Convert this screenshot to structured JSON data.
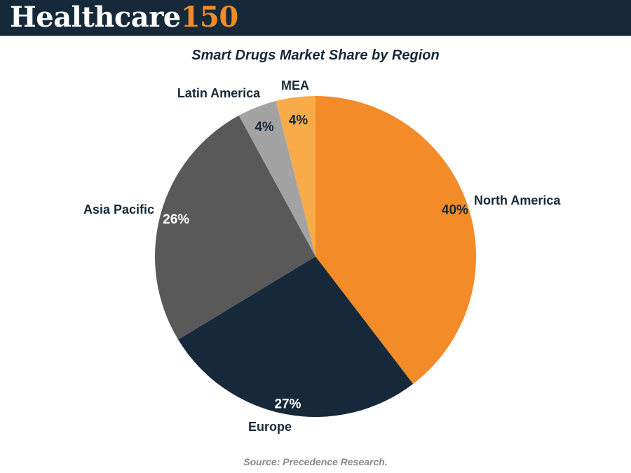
{
  "brand": {
    "name": "Healthcare",
    "number": "150"
  },
  "chart_data": {
    "type": "pie",
    "title": "Smart Drugs Market Share by Region",
    "categories": [
      "North America",
      "Europe",
      "Asia Pacific",
      "Latin America",
      "MEA"
    ],
    "values": [
      40,
      27,
      26,
      4,
      4
    ],
    "value_labels": [
      "40%",
      "27%",
      "26%",
      "4%",
      "4%"
    ],
    "colors": [
      "#f28b28",
      "#16293a",
      "#595959",
      "#a3a3a3",
      "#f8ab48"
    ],
    "label_colors": [
      "#16293a",
      "#ffffff",
      "#ffffff",
      "#16293a",
      "#16293a"
    ],
    "start": "12 o'clock",
    "direction": "clockwise"
  },
  "source": "Source: Precedence Research."
}
